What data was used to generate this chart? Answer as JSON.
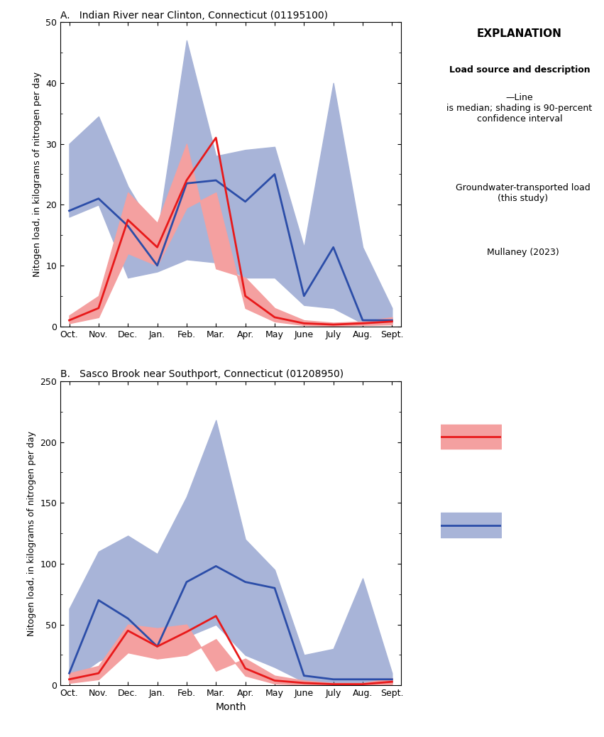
{
  "months": [
    "Oct.",
    "Nov.",
    "Dec.",
    "Jan.",
    "Feb.",
    "Mar.",
    "Apr.",
    "May",
    "June",
    "July",
    "Aug.",
    "Sept."
  ],
  "panel_A": {
    "title": "A.   Indian River near Clinton, Connecticut (01195100)",
    "ylim": [
      0,
      50
    ],
    "yticks": [
      0,
      10,
      20,
      30,
      40,
      50
    ],
    "red_median": [
      1.0,
      3.0,
      17.5,
      13.0,
      24.0,
      31.0,
      5.0,
      1.5,
      0.5,
      0.3,
      0.5,
      0.8
    ],
    "red_low": [
      0.5,
      1.5,
      12.0,
      10.0,
      19.5,
      22.0,
      3.0,
      0.8,
      0.2,
      0.1,
      0.2,
      0.3
    ],
    "red_high": [
      1.8,
      5.0,
      22.0,
      17.0,
      30.0,
      9.5,
      8.0,
      3.0,
      1.0,
      0.6,
      0.8,
      1.5
    ],
    "blue_median": [
      19.0,
      21.0,
      16.5,
      10.0,
      23.5,
      24.0,
      20.5,
      25.0,
      5.0,
      13.0,
      1.0,
      1.0
    ],
    "blue_low": [
      18.0,
      20.0,
      8.0,
      9.0,
      11.0,
      10.5,
      8.0,
      8.0,
      3.5,
      3.0,
      0.5,
      0.5
    ],
    "blue_high": [
      30.0,
      34.5,
      23.0,
      15.0,
      47.0,
      28.0,
      29.0,
      29.5,
      13.0,
      40.0,
      13.0,
      3.0
    ]
  },
  "panel_B": {
    "title": "B.   Sasco Brook near Southport, Connecticut (01208950)",
    "ylim": [
      0,
      250
    ],
    "yticks": [
      0,
      50,
      100,
      150,
      200,
      250
    ],
    "red_median": [
      5.0,
      10.0,
      45.0,
      32.0,
      44.0,
      57.0,
      14.0,
      4.0,
      2.0,
      1.0,
      1.0,
      3.0
    ],
    "red_low": [
      2.0,
      5.0,
      27.0,
      22.0,
      25.0,
      38.0,
      8.0,
      1.5,
      0.5,
      0.3,
      0.3,
      0.8
    ],
    "red_high": [
      10.0,
      16.0,
      50.0,
      47.0,
      50.0,
      12.0,
      22.0,
      8.0,
      4.0,
      2.0,
      2.0,
      6.0
    ],
    "blue_median": [
      10.0,
      70.0,
      55.0,
      32.0,
      85.0,
      98.0,
      85.0,
      80.0,
      8.0,
      5.0,
      5.0,
      5.0
    ],
    "blue_low": [
      3.0,
      20.0,
      30.0,
      25.0,
      40.0,
      50.0,
      25.0,
      15.0,
      3.0,
      2.0,
      2.0,
      2.0
    ],
    "blue_high": [
      63.0,
      110.0,
      123.0,
      108.0,
      155.0,
      218.0,
      120.0,
      95.0,
      25.0,
      30.0,
      88.0,
      10.0
    ]
  },
  "red_line_color": "#e8191a",
  "red_fill_color": "#f4a0a0",
  "blue_line_color": "#2b4da8",
  "blue_fill_color": "#a8b4d8",
  "ylabel": "Nitogen load, in kilograms of nitrogen per day",
  "xlabel": "Month",
  "legend_title": "EXPLANATION",
  "legend_line1_bold": "Load source and description",
  "legend_line1_normal": "—Line\nis median; shading is 90-percent\nconfidence interval",
  "legend_red_label": "Groundwater-transported load\n(this study)",
  "legend_blue_label": "Mullaney (2023)"
}
